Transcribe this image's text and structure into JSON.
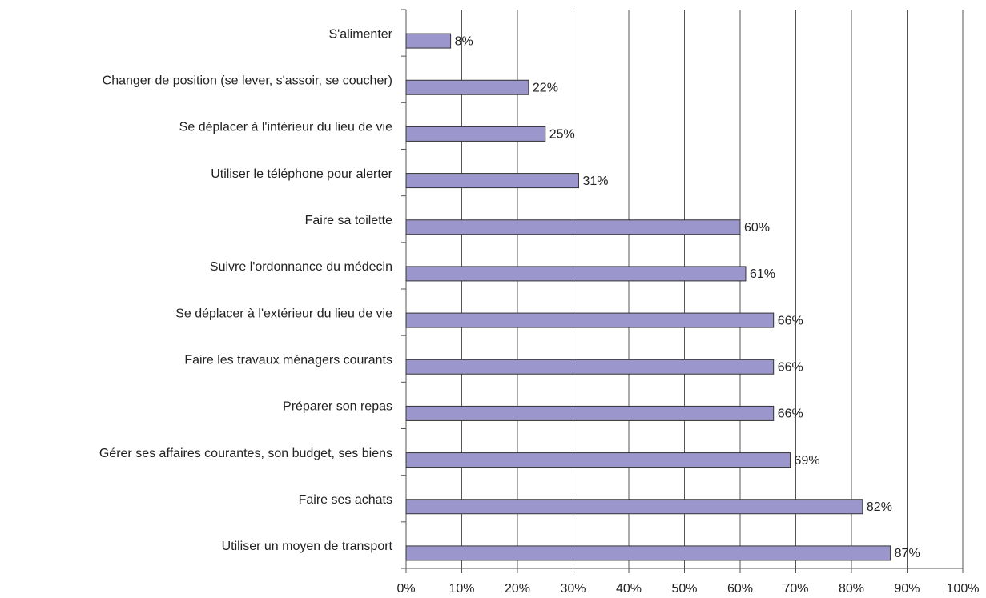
{
  "chart_data": {
    "type": "hbar",
    "categories": [
      "S'alimenter",
      "Changer de position (se lever, s'assoir, se coucher)",
      "Se déplacer à l'intérieur du lieu de vie",
      "Utiliser le téléphone pour alerter",
      "Faire sa toilette",
      "Suivre l'ordonnance du médecin",
      "Se déplacer à l'extérieur du lieu de vie",
      "Faire les travaux ménagers courants",
      "Préparer son repas",
      "Gérer ses affaires courantes, son budget, ses biens",
      "Faire ses achats",
      "Utiliser un moyen de transport"
    ],
    "values": [
      8,
      22,
      25,
      31,
      60,
      61,
      66,
      66,
      66,
      69,
      82,
      87
    ],
    "value_labels": [
      "8%",
      "22%",
      "25%",
      "31%",
      "60%",
      "61%",
      "66%",
      "66%",
      "66%",
      "69%",
      "82%",
      "87%"
    ],
    "color": "#9b96cb",
    "xlim": [
      0,
      100
    ],
    "xticks": [
      {
        "value": 0,
        "label": "0%"
      },
      {
        "value": 10,
        "label": "10%"
      },
      {
        "value": 20,
        "label": "20%"
      },
      {
        "value": 30,
        "label": "30%"
      },
      {
        "value": 40,
        "label": "40%"
      },
      {
        "value": 50,
        "label": "50%"
      },
      {
        "value": 60,
        "label": "60%"
      },
      {
        "value": 70,
        "label": "70%"
      },
      {
        "value": 80,
        "label": "80%"
      },
      {
        "value": 90,
        "label": "90%"
      },
      {
        "value": 100,
        "label": "100%"
      }
    ],
    "grid": true
  }
}
